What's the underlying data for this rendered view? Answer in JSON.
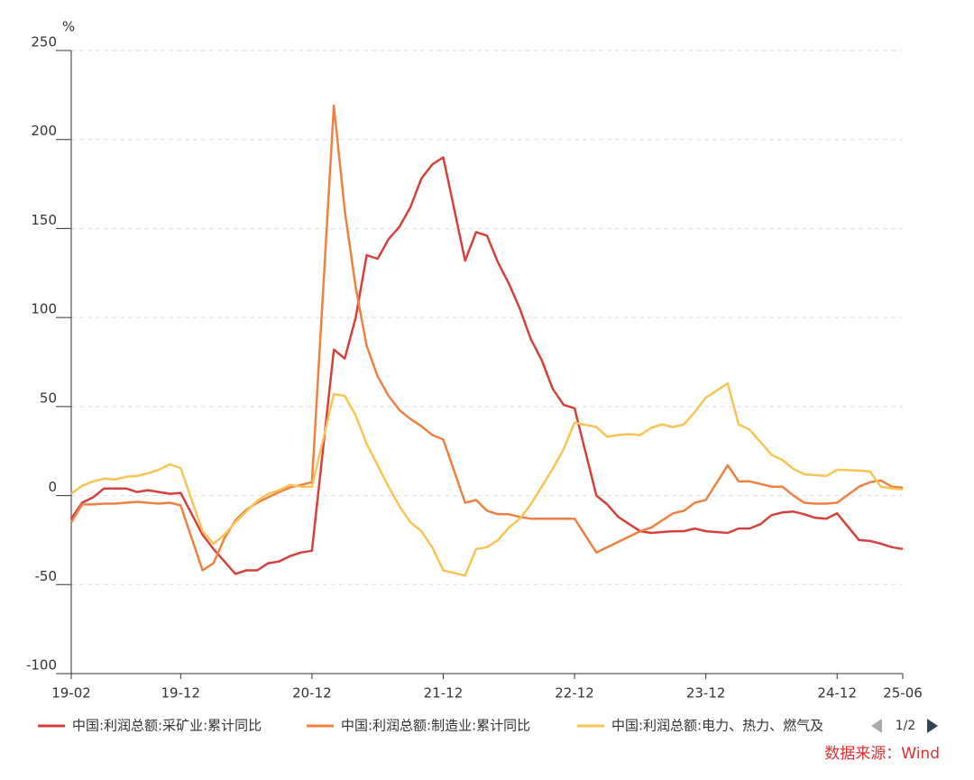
{
  "chart_data": {
    "type": "line",
    "y_unit": "%",
    "x": [
      "19-02",
      "19-03",
      "19-04",
      "19-05",
      "19-06",
      "19-07",
      "19-08",
      "19-09",
      "19-10",
      "19-11",
      "19-12",
      "20-02",
      "20-03",
      "20-04",
      "20-05",
      "20-06",
      "20-07",
      "20-08",
      "20-09",
      "20-10",
      "20-11",
      "20-12",
      "21-02",
      "21-03",
      "21-04",
      "21-05",
      "21-06",
      "21-07",
      "21-08",
      "21-09",
      "21-10",
      "21-11",
      "21-12",
      "22-02",
      "22-03",
      "22-04",
      "22-05",
      "22-06",
      "22-07",
      "22-08",
      "22-09",
      "22-10",
      "22-11",
      "22-12",
      "23-02",
      "23-03",
      "23-04",
      "23-05",
      "23-06",
      "23-07",
      "23-08",
      "23-09",
      "23-10",
      "23-11",
      "23-12",
      "24-02",
      "24-03",
      "24-04",
      "24-05",
      "24-06",
      "24-07",
      "24-08",
      "24-09",
      "24-10",
      "24-11",
      "24-12",
      "25-02",
      "25-03",
      "25-04",
      "25-05",
      "25-06"
    ],
    "series": [
      {
        "name": "中国:利润总额:采矿业:累计同比",
        "color": "#d6403a",
        "values": [
          -13,
          -4,
          -1,
          4,
          4,
          4,
          2,
          3,
          2,
          1,
          1.5,
          -22,
          -30,
          -37,
          -44,
          -42,
          -42,
          -38,
          -37,
          -34,
          -32,
          -31,
          82,
          77,
          100,
          135,
          133,
          144,
          151,
          162,
          178,
          186,
          190,
          132,
          148,
          146,
          131,
          119,
          105,
          88,
          76,
          60,
          51,
          49,
          0,
          -5,
          -12,
          -16,
          -20,
          -21,
          -20.5,
          -20,
          -20,
          -18.5,
          -20,
          -21,
          -18.5,
          -18.5,
          -16,
          -11,
          -9.5,
          -9,
          -10.5,
          -12.5,
          -13,
          -10,
          -25,
          -25.5,
          -27,
          -29,
          -30
        ]
      },
      {
        "name": "中国:利润总额:制造业:累计同比",
        "color": "#f08040",
        "values": [
          -15,
          -5,
          -5,
          -4.5,
          -4.5,
          -4,
          -3.5,
          -4,
          -4.5,
          -4,
          -5.5,
          -42,
          -38,
          -24,
          -14,
          -8,
          -4,
          -1,
          2,
          4.5,
          6,
          7.5,
          219,
          160,
          117,
          84,
          67,
          56,
          48,
          43,
          39,
          34,
          31.5,
          -4,
          -2.5,
          -8.5,
          -10.5,
          -10.5,
          -12,
          -13,
          -13,
          -13,
          -13,
          -13,
          -32,
          -29,
          -26,
          -23,
          -20,
          -18,
          -14,
          -10,
          -8.5,
          -4,
          -2.5,
          17,
          8,
          8,
          6.5,
          5,
          5,
          0,
          -4,
          -4.5,
          -4.5,
          -4,
          5,
          7.5,
          8.5,
          5,
          4.5
        ]
      },
      {
        "name": "中国:利润总额:电力、热力、燃气及",
        "color": "#f8c454",
        "values": [
          1,
          5.5,
          8,
          9.5,
          9,
          10.5,
          11,
          12.5,
          14.5,
          17.5,
          15.5,
          -20,
          -27,
          -22,
          -15,
          -9,
          -3,
          1,
          3,
          6,
          5,
          5,
          57,
          56,
          45,
          29,
          17,
          5,
          -6,
          -15,
          -20,
          -29,
          -42,
          -45,
          -30,
          -29,
          -25,
          -18,
          -13,
          -5,
          5,
          15,
          26,
          41,
          38.5,
          33,
          34,
          34.5,
          34,
          38,
          40,
          38.5,
          40,
          47,
          55,
          63,
          40,
          37,
          30,
          23,
          20,
          15,
          12,
          11.5,
          11,
          14.5,
          14,
          13.5,
          5,
          4,
          3.5
        ]
      }
    ],
    "xlim": [
      "19-02",
      "25-06"
    ],
    "xticks": [
      "19-02",
      "19-12",
      "20-12",
      "21-12",
      "22-12",
      "23-12",
      "24-12",
      "25-06"
    ],
    "ylim": [
      -100,
      250
    ],
    "yticks": [
      -100,
      -50,
      0,
      50,
      100,
      150,
      200,
      250
    ],
    "grid": true,
    "legend_page": "1/2",
    "source": "数据来源：Wind"
  }
}
